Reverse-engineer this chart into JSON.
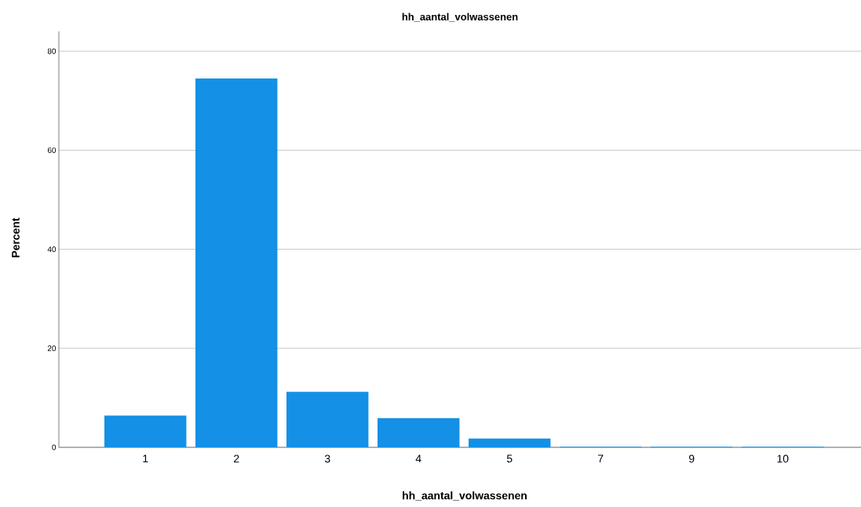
{
  "chart_data": {
    "type": "bar",
    "title": "hh_aantal_volwassenen",
    "xlabel": "hh_aantal_volwassenen",
    "ylabel": "Percent",
    "categories": [
      "1",
      "2",
      "3",
      "4",
      "5",
      "7",
      "9",
      "10"
    ],
    "values": [
      6.4,
      74.5,
      11.2,
      5.9,
      1.8,
      0.1,
      0.1,
      0.1
    ],
    "color": "#1490e6",
    "ylim": [
      0,
      84
    ],
    "yticks": [
      0,
      20,
      40,
      60,
      80
    ],
    "grid": "y"
  }
}
